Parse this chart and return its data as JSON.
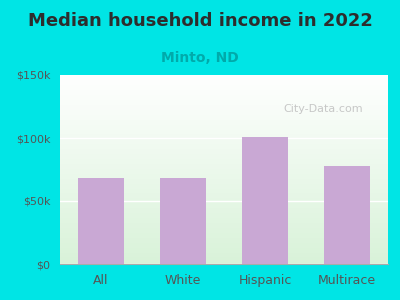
{
  "title": "Median household income in 2022",
  "subtitle": "Minto, ND",
  "categories": [
    "All",
    "White",
    "Hispanic",
    "Multirace"
  ],
  "values": [
    68000,
    68000,
    101000,
    78000
  ],
  "bar_color": "#c9a8d4",
  "ylim": [
    0,
    150000
  ],
  "yticks": [
    0,
    50000,
    100000,
    150000
  ],
  "ytick_labels": [
    "$0",
    "$50k",
    "$100k",
    "$150k"
  ],
  "outer_bg": "#00e5e5",
  "title_color": "#2d2d2d",
  "title_fontsize": 13,
  "subtitle_color": "#00aaaa",
  "subtitle_fontsize": 10,
  "tick_color": "#555555",
  "watermark_text": "City-Data.com",
  "watermark_color": "#bbbbbb"
}
